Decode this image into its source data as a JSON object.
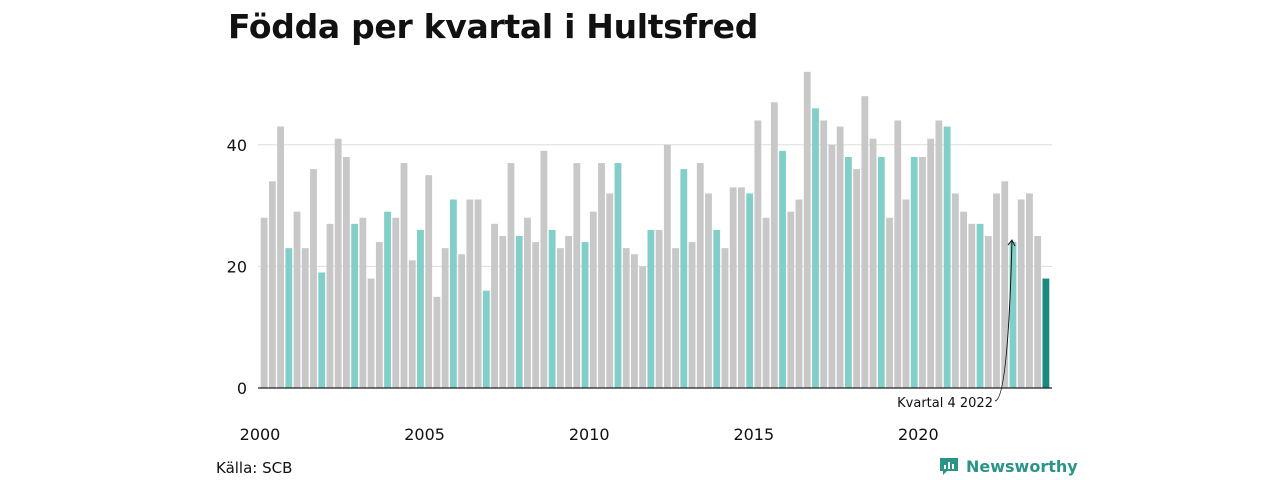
{
  "title": "Födda per kvartal i Hultsfred",
  "source": "Källa: SCB",
  "brand": {
    "name": "Newsworthy",
    "icon": "bar-chart-logo-icon"
  },
  "colors": {
    "default": "#c8c8c8",
    "highlight": "#82cfc9",
    "current": "#1a8a80",
    "grid": "#dddddd",
    "axis": "#222222"
  },
  "chart_data": {
    "type": "bar",
    "title": "Födda per kvartal i Hultsfred",
    "xlabel": "",
    "ylabel": "",
    "ylim": [
      0,
      53
    ],
    "yticks": [
      0,
      20,
      40
    ],
    "xticks": [
      2000,
      2005,
      2010,
      2015,
      2020
    ],
    "grid": true,
    "highlight_quarter": 4,
    "annotation": {
      "text": "Kvartal 4 2022",
      "target": "2022 Q4"
    },
    "series": [
      {
        "quarter_start": "2000 Q1",
        "values": [
          28,
          34,
          43,
          23,
          29,
          23,
          36,
          19,
          27,
          41,
          38,
          27,
          28,
          18,
          24,
          29,
          28,
          37,
          21,
          26,
          35,
          15,
          23,
          31,
          22,
          31,
          31,
          16,
          27,
          25,
          37,
          25,
          28,
          24,
          39,
          26,
          23,
          25,
          37,
          24,
          29,
          37,
          32,
          37,
          23,
          22,
          20,
          26,
          26,
          40,
          23,
          36,
          24,
          37,
          32,
          26,
          23,
          33,
          33,
          32,
          44,
          28,
          47,
          39,
          29,
          31,
          52,
          46,
          44,
          40,
          43,
          38,
          36,
          48,
          41,
          38,
          28,
          44,
          31,
          38,
          38,
          41,
          44,
          43,
          32,
          29,
          27,
          27,
          25,
          32,
          34,
          24,
          31,
          32,
          25,
          18
        ]
      }
    ]
  }
}
